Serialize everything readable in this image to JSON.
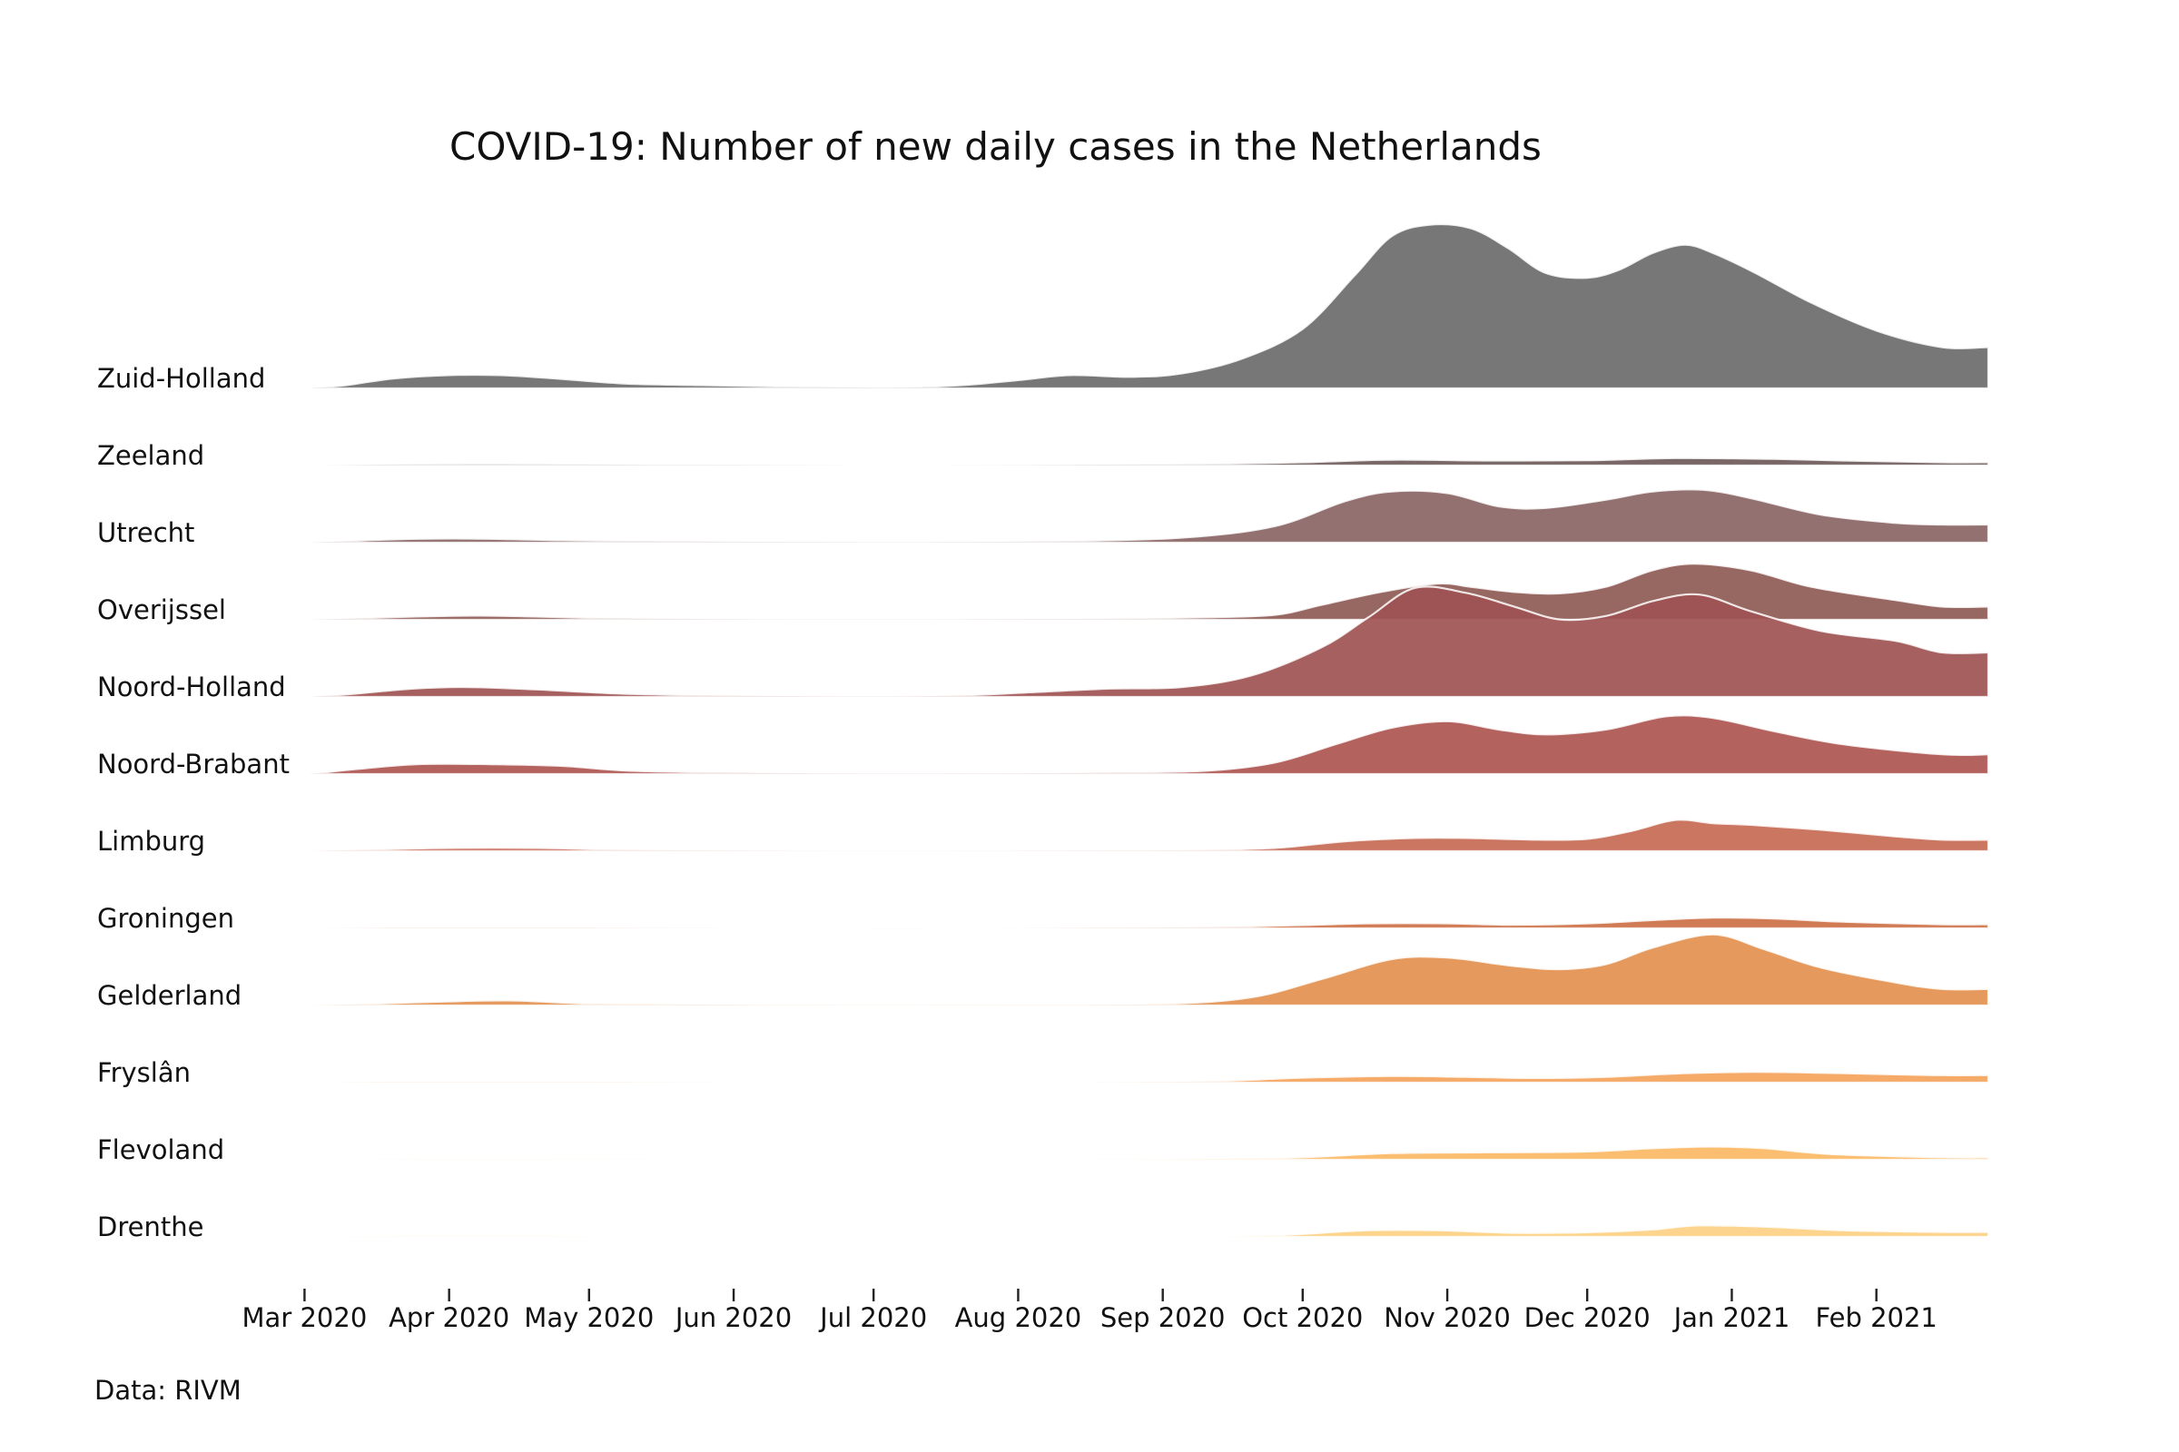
{
  "chart_data": {
    "type": "area",
    "subtype": "ridgeline",
    "title": "COVID-19: Number of new daily cases in the Netherlands",
    "source": "Data: RIVM",
    "x_range": [
      "2020-02-27",
      "2021-02-25"
    ],
    "x_ticks": [
      {
        "date": "2020-03-01",
        "label": "Mar 2020"
      },
      {
        "date": "2020-04-01",
        "label": "Apr 2020"
      },
      {
        "date": "2020-05-01",
        "label": "May 2020"
      },
      {
        "date": "2020-06-01",
        "label": "Jun 2020"
      },
      {
        "date": "2020-07-01",
        "label": "Jul 2020"
      },
      {
        "date": "2020-08-01",
        "label": "Aug 2020"
      },
      {
        "date": "2020-09-01",
        "label": "Sep 2020"
      },
      {
        "date": "2020-10-01",
        "label": "Oct 2020"
      },
      {
        "date": "2020-11-01",
        "label": "Nov 2020"
      },
      {
        "date": "2020-12-01",
        "label": "Dec 2020"
      },
      {
        "date": "2021-01-01",
        "label": "Jan 2021"
      },
      {
        "date": "2021-02-01",
        "label": "Feb 2021"
      }
    ],
    "y_relative_max": 1.0,
    "series": [
      {
        "name": "Zuid-Holland",
        "color": "#6b6b6b",
        "points": [
          [
            "2020-03-02",
            0
          ],
          [
            "2020-03-10",
            0.02
          ],
          [
            "2020-03-20",
            0.06
          ],
          [
            "2020-04-01",
            0.08
          ],
          [
            "2020-04-12",
            0.08
          ],
          [
            "2020-04-24",
            0.06
          ],
          [
            "2020-05-08",
            0.03
          ],
          [
            "2020-05-25",
            0.02
          ],
          [
            "2020-06-15",
            0.01
          ],
          [
            "2020-07-05",
            0.005
          ],
          [
            "2020-07-20",
            0.02
          ],
          [
            "2020-08-01",
            0.05
          ],
          [
            "2020-08-12",
            0.08
          ],
          [
            "2020-08-25",
            0.07
          ],
          [
            "2020-09-05",
            0.09
          ],
          [
            "2020-09-18",
            0.18
          ],
          [
            "2020-10-01",
            0.36
          ],
          [
            "2020-10-12",
            0.68
          ],
          [
            "2020-10-20",
            0.92
          ],
          [
            "2020-10-28",
            0.99
          ],
          [
            "2020-11-06",
            0.97
          ],
          [
            "2020-11-14",
            0.85
          ],
          [
            "2020-11-22",
            0.7
          ],
          [
            "2020-12-01",
            0.67
          ],
          [
            "2020-12-08",
            0.72
          ],
          [
            "2020-12-15",
            0.82
          ],
          [
            "2020-12-22",
            0.87
          ],
          [
            "2020-12-28",
            0.82
          ],
          [
            "2021-01-06",
            0.7
          ],
          [
            "2021-01-18",
            0.52
          ],
          [
            "2021-02-01",
            0.35
          ],
          [
            "2021-02-15",
            0.25
          ]
        ]
      },
      {
        "name": "Zeeland",
        "color": "#6e5a5a",
        "points": [
          [
            "2020-03-05",
            0
          ],
          [
            "2020-03-25",
            0.008
          ],
          [
            "2020-04-15",
            0.01
          ],
          [
            "2020-05-10",
            0.005
          ],
          [
            "2020-06-05",
            0.003
          ],
          [
            "2020-07-05",
            0
          ],
          [
            "2020-08-01",
            0.002
          ],
          [
            "2020-09-10",
            0.01
          ],
          [
            "2020-10-01",
            0.02
          ],
          [
            "2020-10-20",
            0.035
          ],
          [
            "2020-11-10",
            0.03
          ],
          [
            "2020-12-01",
            0.032
          ],
          [
            "2020-12-20",
            0.045
          ],
          [
            "2021-01-10",
            0.04
          ],
          [
            "2021-01-25",
            0.03
          ],
          [
            "2021-02-15",
            0.02
          ]
        ]
      },
      {
        "name": "Utrecht",
        "color": "#8a6565",
        "points": [
          [
            "2020-03-02",
            0
          ],
          [
            "2020-03-20",
            0.02
          ],
          [
            "2020-04-05",
            0.025
          ],
          [
            "2020-04-25",
            0.015
          ],
          [
            "2020-05-15",
            0.01
          ],
          [
            "2020-06-10",
            0.005
          ],
          [
            "2020-07-10",
            0.003
          ],
          [
            "2020-08-10",
            0.01
          ],
          [
            "2020-09-05",
            0.03
          ],
          [
            "2020-09-25",
            0.1
          ],
          [
            "2020-10-10",
            0.25
          ],
          [
            "2020-10-20",
            0.31
          ],
          [
            "2020-11-01",
            0.3
          ],
          [
            "2020-11-12",
            0.22
          ],
          [
            "2020-11-22",
            0.21
          ],
          [
            "2020-12-05",
            0.26
          ],
          [
            "2020-12-15",
            0.31
          ],
          [
            "2020-12-26",
            0.32
          ],
          [
            "2021-01-05",
            0.27
          ],
          [
            "2021-01-20",
            0.17
          ],
          [
            "2021-02-05",
            0.12
          ],
          [
            "2021-02-15",
            0.11
          ]
        ]
      },
      {
        "name": "Overijssel",
        "color": "#8e5a55",
        "points": [
          [
            "2020-03-02",
            0
          ],
          [
            "2020-03-25",
            0.02
          ],
          [
            "2020-04-10",
            0.025
          ],
          [
            "2020-05-01",
            0.012
          ],
          [
            "2020-05-25",
            0.005
          ],
          [
            "2020-06-20",
            0.002
          ],
          [
            "2020-07-20",
            0.003
          ],
          [
            "2020-08-20",
            0.007
          ],
          [
            "2020-09-10",
            0.015
          ],
          [
            "2020-09-25",
            0.03
          ],
          [
            "2020-10-05",
            0.09
          ],
          [
            "2020-10-18",
            0.17
          ],
          [
            "2020-10-30",
            0.22
          ],
          [
            "2020-11-06",
            0.2
          ],
          [
            "2020-11-15",
            0.17
          ],
          [
            "2020-11-25",
            0.16
          ],
          [
            "2020-12-05",
            0.2
          ],
          [
            "2020-12-15",
            0.3
          ],
          [
            "2020-12-24",
            0.34
          ],
          [
            "2021-01-05",
            0.3
          ],
          [
            "2021-01-18",
            0.2
          ],
          [
            "2021-02-05",
            0.12
          ],
          [
            "2021-02-15",
            0.08
          ]
        ]
      },
      {
        "name": "Noord-Holland",
        "color": "#9e5252",
        "points": [
          [
            "2020-03-02",
            0
          ],
          [
            "2020-03-12",
            0.02
          ],
          [
            "2020-03-24",
            0.05
          ],
          [
            "2020-04-05",
            0.06
          ],
          [
            "2020-04-20",
            0.045
          ],
          [
            "2020-05-08",
            0.02
          ],
          [
            "2020-06-01",
            0.008
          ],
          [
            "2020-07-01",
            0.003
          ],
          [
            "2020-07-20",
            0.01
          ],
          [
            "2020-08-05",
            0.03
          ],
          [
            "2020-08-20",
            0.05
          ],
          [
            "2020-09-05",
            0.06
          ],
          [
            "2020-09-20",
            0.13
          ],
          [
            "2020-10-05",
            0.3
          ],
          [
            "2020-10-15",
            0.48
          ],
          [
            "2020-10-25",
            0.66
          ],
          [
            "2020-11-05",
            0.63
          ],
          [
            "2020-11-15",
            0.55
          ],
          [
            "2020-11-25",
            0.47
          ],
          [
            "2020-12-05",
            0.49
          ],
          [
            "2020-12-15",
            0.58
          ],
          [
            "2020-12-25",
            0.62
          ],
          [
            "2021-01-05",
            0.52
          ],
          [
            "2021-01-20",
            0.4
          ],
          [
            "2021-02-05",
            0.34
          ],
          [
            "2021-02-15",
            0.27
          ]
        ]
      },
      {
        "name": "Noord-Brabant",
        "color": "#ad5550",
        "points": [
          [
            "2020-03-02",
            0
          ],
          [
            "2020-03-12",
            0.03
          ],
          [
            "2020-03-25",
            0.06
          ],
          [
            "2020-04-10",
            0.06
          ],
          [
            "2020-04-25",
            0.05
          ],
          [
            "2020-05-10",
            0.02
          ],
          [
            "2020-06-05",
            0.008
          ],
          [
            "2020-07-05",
            0.003
          ],
          [
            "2020-08-01",
            0.005
          ],
          [
            "2020-08-20",
            0.01
          ],
          [
            "2020-09-10",
            0.02
          ],
          [
            "2020-09-25",
            0.07
          ],
          [
            "2020-10-08",
            0.18
          ],
          [
            "2020-10-20",
            0.28
          ],
          [
            "2020-11-01",
            0.32
          ],
          [
            "2020-11-12",
            0.27
          ],
          [
            "2020-11-22",
            0.24
          ],
          [
            "2020-12-05",
            0.27
          ],
          [
            "2020-12-18",
            0.35
          ],
          [
            "2020-12-28",
            0.34
          ],
          [
            "2021-01-10",
            0.26
          ],
          [
            "2021-01-25",
            0.18
          ],
          [
            "2021-02-15",
            0.12
          ]
        ]
      },
      {
        "name": "Limburg",
        "color": "#c66a52",
        "points": [
          [
            "2020-03-02",
            0
          ],
          [
            "2020-03-15",
            0.01
          ],
          [
            "2020-04-01",
            0.02
          ],
          [
            "2020-04-20",
            0.02
          ],
          [
            "2020-05-10",
            0.008
          ],
          [
            "2020-06-10",
            0.003
          ],
          [
            "2020-07-10",
            0.001
          ],
          [
            "2020-08-10",
            0.003
          ],
          [
            "2020-09-05",
            0.006
          ],
          [
            "2020-09-25",
            0.02
          ],
          [
            "2020-10-10",
            0.06
          ],
          [
            "2020-10-25",
            0.08
          ],
          [
            "2020-11-05",
            0.08
          ],
          [
            "2020-11-20",
            0.07
          ],
          [
            "2020-12-01",
            0.075
          ],
          [
            "2020-12-10",
            0.12
          ],
          [
            "2020-12-18",
            0.18
          ],
          [
            "2020-12-22",
            0.19
          ],
          [
            "2020-12-28",
            0.17
          ],
          [
            "2021-01-05",
            0.16
          ],
          [
            "2021-01-20",
            0.13
          ],
          [
            "2021-02-05",
            0.09
          ],
          [
            "2021-02-15",
            0.07
          ]
        ]
      },
      {
        "name": "Groningen",
        "color": "#cc7045",
        "points": [
          [
            "2020-03-05",
            0
          ],
          [
            "2020-03-25",
            0.004
          ],
          [
            "2020-04-20",
            0.004
          ],
          [
            "2020-05-15",
            0.002
          ],
          [
            "2020-06-20",
            0.0
          ],
          [
            "2020-07-20",
            0.0
          ],
          [
            "2020-08-10",
            0.002
          ],
          [
            "2020-09-10",
            0.008
          ],
          [
            "2020-10-01",
            0.02
          ],
          [
            "2020-10-15",
            0.03
          ],
          [
            "2020-11-01",
            0.03
          ],
          [
            "2020-11-15",
            0.022
          ],
          [
            "2020-12-01",
            0.03
          ],
          [
            "2020-12-15",
            0.05
          ],
          [
            "2020-12-28",
            0.065
          ],
          [
            "2021-01-10",
            0.06
          ],
          [
            "2021-01-25",
            0.04
          ],
          [
            "2021-02-15",
            0.025
          ]
        ]
      },
      {
        "name": "Gelderland",
        "color": "#e3904e",
        "points": [
          [
            "2020-03-02",
            0
          ],
          [
            "2020-03-15",
            0.01
          ],
          [
            "2020-04-01",
            0.025
          ],
          [
            "2020-04-15",
            0.03
          ],
          [
            "2020-05-01",
            0.012
          ],
          [
            "2020-06-01",
            0.005
          ],
          [
            "2020-07-01",
            0.002
          ],
          [
            "2020-08-01",
            0.004
          ],
          [
            "2020-09-01",
            0.01
          ],
          [
            "2020-09-20",
            0.05
          ],
          [
            "2020-10-05",
            0.16
          ],
          [
            "2020-10-20",
            0.28
          ],
          [
            "2020-11-01",
            0.29
          ],
          [
            "2020-11-15",
            0.24
          ],
          [
            "2020-11-25",
            0.22
          ],
          [
            "2020-12-05",
            0.25
          ],
          [
            "2020-12-15",
            0.35
          ],
          [
            "2020-12-28",
            0.43
          ],
          [
            "2021-01-08",
            0.34
          ],
          [
            "2021-01-20",
            0.23
          ],
          [
            "2021-02-05",
            0.14
          ],
          [
            "2021-02-15",
            0.1
          ]
        ]
      },
      {
        "name": "Fryslân",
        "color": "#f5a35a",
        "points": [
          [
            "2020-03-05",
            0
          ],
          [
            "2020-03-25",
            0.004
          ],
          [
            "2020-04-20",
            0.004
          ],
          [
            "2020-05-15",
            0.002
          ],
          [
            "2020-06-20",
            0.0
          ],
          [
            "2020-08-10",
            0.0
          ],
          [
            "2020-09-10",
            0.008
          ],
          [
            "2020-10-01",
            0.03
          ],
          [
            "2020-10-20",
            0.04
          ],
          [
            "2020-11-05",
            0.035
          ],
          [
            "2020-11-20",
            0.028
          ],
          [
            "2020-12-05",
            0.035
          ],
          [
            "2020-12-20",
            0.055
          ],
          [
            "2021-01-05",
            0.065
          ],
          [
            "2021-01-20",
            0.06
          ],
          [
            "2021-02-05",
            0.05
          ],
          [
            "2021-02-15",
            0.045
          ]
        ]
      },
      {
        "name": "Flevoland",
        "color": "#fbb865",
        "points": [
          [
            "2020-03-10",
            0
          ],
          [
            "2020-04-01",
            0.003
          ],
          [
            "2020-05-01",
            0.002
          ],
          [
            "2020-06-01",
            0
          ],
          [
            "2020-08-05",
            0.0
          ],
          [
            "2020-09-10",
            0.005
          ],
          [
            "2020-10-01",
            0.015
          ],
          [
            "2020-10-20",
            0.04
          ],
          [
            "2020-11-10",
            0.045
          ],
          [
            "2020-12-01",
            0.05
          ],
          [
            "2020-12-15",
            0.07
          ],
          [
            "2020-12-28",
            0.08
          ],
          [
            "2021-01-08",
            0.07
          ],
          [
            "2021-01-22",
            0.035
          ],
          [
            "2021-02-15",
            0.015
          ]
        ]
      },
      {
        "name": "Drenthe",
        "color": "#fdd083",
        "points": [
          [
            "2020-03-05",
            0
          ],
          [
            "2020-03-25",
            0.004
          ],
          [
            "2020-04-20",
            0.004
          ],
          [
            "2020-05-15",
            0.001
          ],
          [
            "2020-09-01",
            0.0
          ],
          [
            "2020-09-25",
            0.01
          ],
          [
            "2020-10-15",
            0.04
          ],
          [
            "2020-10-30",
            0.04
          ],
          [
            "2020-11-15",
            0.025
          ],
          [
            "2020-12-01",
            0.028
          ],
          [
            "2020-12-15",
            0.045
          ],
          [
            "2020-12-25",
            0.07
          ],
          [
            "2021-01-10",
            0.06
          ],
          [
            "2021-01-25",
            0.04
          ],
          [
            "2021-02-15",
            0.03
          ]
        ]
      }
    ]
  }
}
